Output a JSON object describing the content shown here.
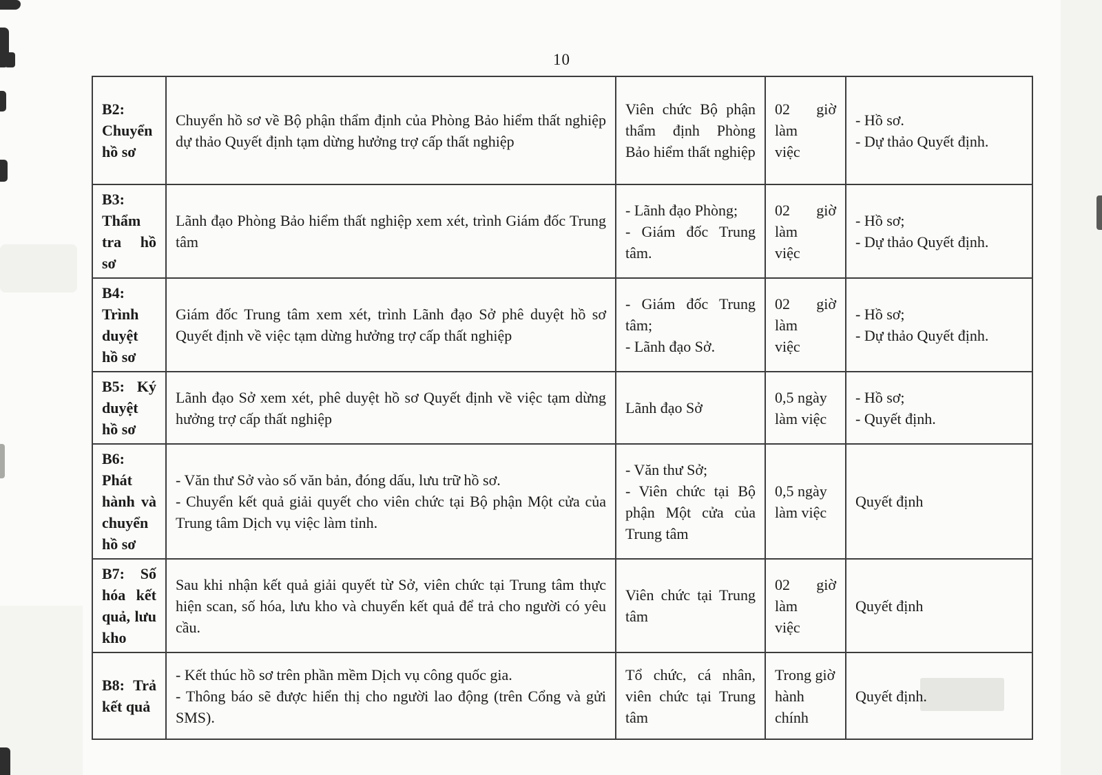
{
  "page": {
    "number": "10"
  },
  "colors": {
    "paper": "#fbfbf9",
    "ink": "#1b1b1b",
    "table_border": "#3c3c3c"
  },
  "table": {
    "rows": [
      {
        "step": "B2: Chuyển hồ sơ",
        "description": "Chuyển hồ sơ về Bộ phận thẩm định của Phòng Bảo hiểm thất nghiệp dự thảo Quyết định tạm dừng hưởng trợ cấp thất nghiệp",
        "responsible": "Viên chức Bộ phận thẩm định Phòng Bảo hiểm thất nghiệp",
        "time": "02 giờ làm\nviệc",
        "result": "- Hồ sơ.\n- Dự thảo Quyết định."
      },
      {
        "step": "B3: Thẩm tra hồ sơ",
        "description": "Lãnh đạo Phòng Bảo hiểm thất nghiệp xem xét, trình Giám đốc Trung tâm",
        "responsible": "- Lãnh đạo Phòng;\n- Giám đốc Trung tâm.",
        "time": "02 giờ làm\nviệc",
        "result": "- Hồ sơ;\n- Dự thảo Quyết định."
      },
      {
        "step": "B4: Trình duyệt hồ sơ",
        "description": "Giám đốc Trung tâm xem xét, trình Lãnh đạo Sở phê duyệt hồ sơ Quyết định về việc tạm dừng hưởng trợ cấp thất nghiệp",
        "responsible": "- Giám đốc Trung tâm;\n- Lãnh đạo Sở.",
        "time": "02 giờ làm\nviệc",
        "result": "- Hồ sơ;\n- Dự thảo Quyết định."
      },
      {
        "step": "B5: Ký duyệt hồ sơ",
        "description": "Lãnh đạo Sở xem xét, phê duyệt hồ sơ Quyết định về việc tạm dừng hưởng trợ cấp thất nghiệp",
        "responsible": "Lãnh đạo Sở",
        "time": "0,5 ngày\nlàm việc",
        "result": "- Hồ sơ;\n- Quyết định."
      },
      {
        "step": "B6: Phát hành và chuyển hồ sơ",
        "description": "- Văn thư Sở vào số văn bản, đóng dấu, lưu trữ hồ sơ.\n- Chuyển kết quả giải quyết cho viên chức tại Bộ phận Một cửa của Trung tâm Dịch vụ việc làm tỉnh.",
        "responsible": "- Văn thư Sở;\n- Viên chức tại Bộ phận Một cửa của Trung tâm",
        "time": "0,5 ngày\nlàm việc",
        "result": "Quyết định"
      },
      {
        "step": "B7: Số hóa kết quả, lưu kho",
        "description": "Sau khi nhận kết quả giải quyết từ Sở, viên chức tại Trung tâm thực hiện scan, số hóa, lưu kho và chuyển kết quả để trả cho người có yêu cầu.",
        "responsible": "Viên chức tại Trung tâm",
        "time": "02 giờ làm\nviệc",
        "result": "Quyết định"
      },
      {
        "step": "B8: Trả kết quả",
        "description": "- Kết thúc hồ sơ trên phần mềm Dịch vụ công quốc gia.\n- Thông báo sẽ được hiển thị cho người lao động (trên Cổng và gửi SMS).",
        "responsible": "Tổ chức, cá nhân, viên chức tại Trung tâm",
        "time": "Trong giờ\nhành chính",
        "result": "Quyết định."
      }
    ]
  }
}
